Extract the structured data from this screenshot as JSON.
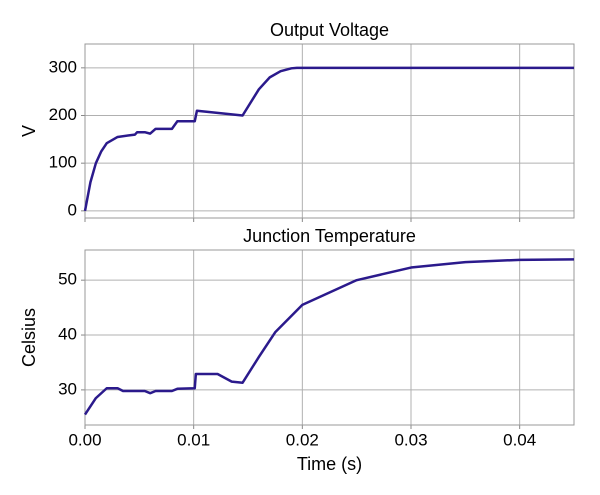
{
  "chart_data": [
    {
      "type": "line",
      "title": "Output Voltage",
      "ylabel": "V",
      "color": "#2b1a8c",
      "grid": true,
      "xlim": [
        0,
        0.045
      ],
      "xticks": [
        0,
        0.01,
        0.02,
        0.03,
        0.04
      ],
      "ylim": [
        -15,
        350
      ],
      "yticks": [
        0,
        100,
        200,
        300
      ],
      "x": [
        0,
        0.0005,
        0.001,
        0.0015,
        0.002,
        0.003,
        0.0046,
        0.0048,
        0.0055,
        0.006,
        0.0065,
        0.008,
        0.0085,
        0.0101,
        0.0103,
        0.0145,
        0.016,
        0.017,
        0.018,
        0.019,
        0.0195,
        0.045
      ],
      "values": [
        0,
        60,
        100,
        125,
        142,
        155,
        160,
        165,
        165,
        162,
        172,
        172,
        188,
        188,
        210,
        200,
        255,
        280,
        293,
        299,
        300,
        300
      ]
    },
    {
      "type": "line",
      "title": "Junction Temperature",
      "ylabel": "Celsius",
      "xlabel": "Time (s)",
      "color": "#2b1a8c",
      "grid": true,
      "xlim": [
        0,
        0.045
      ],
      "xticks": [
        {
          "value": 0,
          "label": "0.00"
        },
        0.01,
        0.02,
        0.03,
        0.04
      ],
      "ylim": [
        23.6,
        55.5
      ],
      "yticks": [
        30,
        40,
        50
      ],
      "x": [
        0,
        0.001,
        0.002,
        0.003,
        0.0035,
        0.0055,
        0.006,
        0.0065,
        0.008,
        0.0085,
        0.0101,
        0.0102,
        0.0122,
        0.0135,
        0.0145,
        0.016,
        0.0175,
        0.02,
        0.025,
        0.03,
        0.035,
        0.04,
        0.045
      ],
      "values": [
        25.5,
        28.5,
        30.3,
        30.3,
        29.8,
        29.8,
        29.4,
        29.8,
        29.8,
        30.2,
        30.3,
        32.9,
        32.9,
        31.5,
        31.3,
        36,
        40.5,
        45.5,
        50,
        52.3,
        53.3,
        53.7,
        53.8
      ]
    }
  ]
}
